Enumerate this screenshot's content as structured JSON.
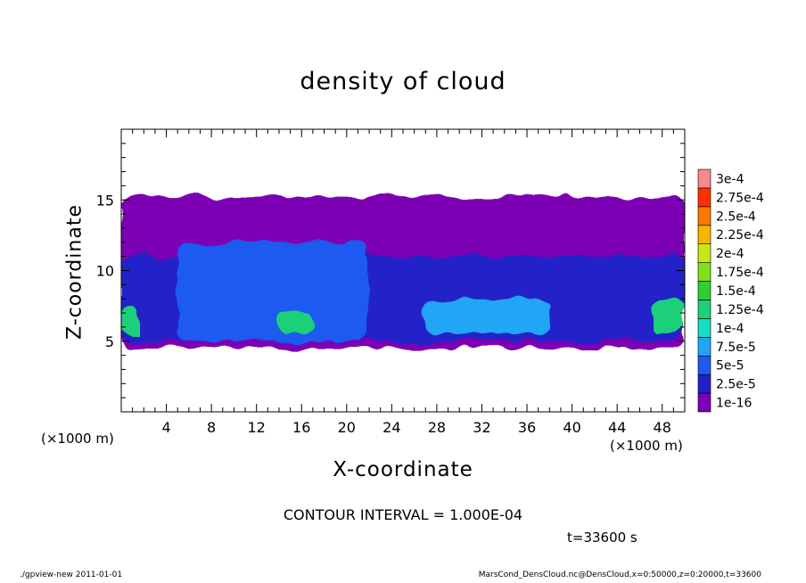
{
  "chart_data": {
    "type": "heatmap",
    "title": "density of cloud",
    "xlabel": "X-coordinate",
    "ylabel": "Z-coordinate",
    "x_unit_label": "(×1000 m)",
    "xlim": [
      0,
      50
    ],
    "ylim": [
      0,
      20
    ],
    "x_ticks": [
      4,
      8,
      12,
      16,
      20,
      24,
      28,
      32,
      36,
      40,
      44,
      48
    ],
    "y_ticks": [
      5,
      10,
      15
    ],
    "colorbar": {
      "labels": [
        "1e-16",
        "2.5e-5",
        "5e-5",
        "7.5e-5",
        "1e-4",
        "1.25e-4",
        "1.5e-4",
        "1.75e-4",
        "2e-4",
        "2.25e-4",
        "2.5e-4",
        "2.75e-4",
        "3e-4"
      ],
      "colors": [
        "#7b00b4",
        "#2020c8",
        "#1e5af0",
        "#23a5f5",
        "#17ddc4",
        "#1ed07a",
        "#33cc33",
        "#7fe01f",
        "#c6e616",
        "#f5b600",
        "#ff7800",
        "#ff3000",
        "#f58a8a"
      ]
    },
    "contour_interval": "CONTOUR INTERVAL = 1.000E-04",
    "regions": [
      {
        "level": 0,
        "xrange": [
          0,
          50
        ],
        "zrange": [
          4.5,
          15.2
        ]
      },
      {
        "level": 1,
        "xrange": [
          0,
          50
        ],
        "zrange": [
          5,
          11
        ]
      },
      {
        "level": 2,
        "xrange": [
          5,
          22
        ],
        "zrange": [
          5,
          12
        ]
      },
      {
        "level": 3,
        "xrange": [
          27,
          38
        ],
        "zrange": [
          5.5,
          8
        ]
      },
      {
        "level": 5,
        "xrange": [
          0,
          1.5
        ],
        "zrange": [
          5.5,
          7.5
        ]
      },
      {
        "level": 5,
        "xrange": [
          14,
          17
        ],
        "zrange": [
          5.5,
          7
        ]
      },
      {
        "level": 5,
        "xrange": [
          47,
          50
        ],
        "zrange": [
          5.5,
          8
        ]
      }
    ]
  },
  "time_label": "t=33600 s",
  "footer_left": "./gpview-new   2011-01-01",
  "footer_right": "MarsCond_DensCloud.nc@DensCloud,x=0:50000,z=0:20000,t=33600"
}
